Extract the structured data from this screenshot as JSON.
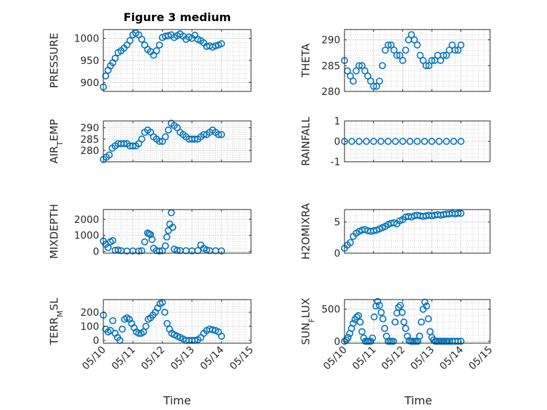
{
  "title": "Figure 3 medium",
  "colors": {
    "marker": "#0072BD",
    "axis": "#262626",
    "grid": "#dfdfdf",
    "minor_grid": "#b5b5b5"
  },
  "x_axis": {
    "label": "Time",
    "tick_labels": [
      "05/10",
      "05/11",
      "05/12",
      "05/13",
      "05/14",
      "05/15"
    ],
    "range_days": [
      0,
      5
    ]
  },
  "chart_data": [
    {
      "type": "scatter",
      "ylabel": "PRESSURE",
      "ylim": [
        880,
        1020
      ],
      "yticks": [
        900,
        950,
        1000
      ],
      "grid": true,
      "x": [
        0,
        0.08,
        0.16,
        0.24,
        0.32,
        0.4,
        0.5,
        0.6,
        0.7,
        0.8,
        0.9,
        1,
        1.1,
        1.2,
        1.3,
        1.4,
        1.5,
        1.6,
        1.7,
        1.8,
        1.9,
        2,
        2.1,
        2.2,
        2.3,
        2.4,
        2.5,
        2.6,
        2.7,
        2.8,
        2.9,
        3,
        3.1,
        3.2,
        3.3,
        3.4,
        3.5,
        3.6,
        3.7,
        3.8,
        3.9,
        4
      ],
      "y": [
        890,
        915,
        928,
        938,
        945,
        955,
        968,
        972,
        978,
        985,
        995,
        1008,
        1012,
        1008,
        998,
        985,
        975,
        970,
        962,
        972,
        985,
        1002,
        1005,
        1006,
        1008,
        1002,
        1006,
        1010,
        1005,
        998,
        1003,
        1000,
        1007,
        998,
        995,
        990,
        982,
        983,
        980,
        983,
        985,
        988
      ]
    },
    {
      "type": "scatter",
      "ylabel": "THETA",
      "ylim": [
        280,
        292
      ],
      "yticks": [
        280,
        285,
        290
      ],
      "grid": true,
      "x": [
        0,
        0.1,
        0.2,
        0.3,
        0.4,
        0.5,
        0.6,
        0.7,
        0.8,
        0.9,
        1,
        1.1,
        1.2,
        1.3,
        1.4,
        1.5,
        1.6,
        1.7,
        1.8,
        1.9,
        2,
        2.1,
        2.2,
        2.3,
        2.4,
        2.5,
        2.6,
        2.7,
        2.8,
        2.9,
        3,
        3.1,
        3.2,
        3.3,
        3.4,
        3.5,
        3.6,
        3.7,
        3.8,
        3.9,
        4
      ],
      "y": [
        286,
        284,
        283,
        282,
        284,
        285,
        285,
        284,
        283,
        282,
        281,
        281,
        282,
        285,
        288,
        289,
        289,
        288,
        287,
        287,
        286,
        288,
        290,
        291,
        290,
        289,
        287,
        286,
        285,
        285,
        286,
        286,
        287,
        286,
        287,
        287,
        288,
        289,
        288,
        288,
        289
      ]
    },
    {
      "type": "scatter",
      "ylabel": "AIR_T_EMP",
      "ylim": [
        275,
        293
      ],
      "yticks": [
        280,
        285,
        290
      ],
      "grid": true,
      "x": [
        0,
        0.1,
        0.2,
        0.3,
        0.4,
        0.5,
        0.6,
        0.7,
        0.8,
        0.9,
        1,
        1.1,
        1.2,
        1.3,
        1.4,
        1.5,
        1.6,
        1.7,
        1.8,
        1.9,
        2,
        2.1,
        2.2,
        2.3,
        2.4,
        2.5,
        2.6,
        2.7,
        2.8,
        2.9,
        3,
        3.1,
        3.2,
        3.3,
        3.4,
        3.5,
        3.6,
        3.7,
        3.8,
        3.9,
        4
      ],
      "y": [
        276,
        277,
        278,
        281,
        282,
        283,
        283,
        283,
        283,
        282,
        282,
        282,
        283,
        285,
        288,
        289,
        288,
        286,
        285,
        284,
        284,
        286,
        289,
        292,
        291,
        290,
        288,
        287,
        286,
        285,
        285,
        285,
        285,
        286,
        287,
        287,
        288,
        289,
        288,
        287,
        287
      ]
    },
    {
      "type": "scatter",
      "ylabel": "RAINFALL",
      "ylim": [
        -1,
        1
      ],
      "yticks": [
        -1,
        0,
        1
      ],
      "grid": true,
      "x": [
        0,
        0.25,
        0.5,
        0.75,
        1,
        1.25,
        1.5,
        1.75,
        2,
        2.25,
        2.5,
        2.75,
        3,
        3.25,
        3.5,
        3.75,
        4
      ],
      "y": [
        0,
        0,
        0,
        0,
        0,
        0,
        0,
        0,
        0,
        0,
        0,
        0,
        0,
        0,
        0,
        0,
        0
      ]
    },
    {
      "type": "scatter",
      "ylabel": "MIXDEPTH",
      "ylim": [
        -100,
        2600
      ],
      "yticks": [
        0,
        1000,
        2000
      ],
      "grid": true,
      "x": [
        0,
        0.08,
        0.16,
        0.24,
        0.32,
        0.4,
        0.5,
        0.6,
        0.8,
        1,
        1.2,
        1.3,
        1.4,
        1.5,
        1.55,
        1.6,
        1.65,
        1.7,
        1.8,
        1.9,
        2,
        2.1,
        2.15,
        2.2,
        2.25,
        2.3,
        2.35,
        2.4,
        2.5,
        2.6,
        2.8,
        3,
        3.2,
        3.3,
        3.4,
        3.5,
        3.6,
        3.8,
        4
      ],
      "y": [
        650,
        450,
        250,
        600,
        680,
        80,
        100,
        50,
        30,
        40,
        30,
        50,
        600,
        1150,
        1100,
        1050,
        750,
        200,
        60,
        30,
        50,
        350,
        900,
        1300,
        1700,
        2400,
        1500,
        150,
        80,
        60,
        50,
        40,
        60,
        400,
        200,
        100,
        60,
        50,
        40
      ]
    },
    {
      "type": "scatter",
      "ylabel": "H2OMIXRA",
      "ylim": [
        0,
        7
      ],
      "yticks": [
        0,
        5
      ],
      "grid": true,
      "x": [
        0,
        0.1,
        0.2,
        0.3,
        0.4,
        0.5,
        0.6,
        0.7,
        0.8,
        0.9,
        1,
        1.1,
        1.2,
        1.3,
        1.4,
        1.5,
        1.6,
        1.7,
        1.8,
        1.9,
        2,
        2.1,
        2.2,
        2.3,
        2.4,
        2.5,
        2.6,
        2.7,
        2.8,
        2.9,
        3,
        3.1,
        3.2,
        3.3,
        3.4,
        3.5,
        3.6,
        3.7,
        3.8,
        3.9,
        4
      ],
      "y": [
        0.8,
        1.3,
        1.7,
        2.7,
        3.2,
        3.5,
        3.7,
        3.8,
        3.6,
        3.5,
        3.6,
        3.7,
        3.9,
        4.1,
        4.3,
        4.6,
        4.8,
        4.9,
        4.7,
        5.2,
        5.4,
        5.8,
        5.9,
        5.8,
        6,
        6.1,
        6,
        5.9,
        6,
        6.1,
        6,
        6.1,
        6.2,
        6.1,
        6.2,
        6.3,
        6.3,
        6.4,
        6.3,
        6.4,
        6.4
      ]
    },
    {
      "type": "scatter",
      "ylabel": "TERR_M_SL",
      "ylim": [
        -20,
        290
      ],
      "yticks": [
        0,
        100,
        200
      ],
      "grid": true,
      "x": [
        0,
        0.08,
        0.16,
        0.24,
        0.32,
        0.4,
        0.48,
        0.56,
        0.64,
        0.72,
        0.8,
        0.88,
        0.96,
        1.04,
        1.12,
        1.2,
        1.28,
        1.36,
        1.44,
        1.52,
        1.6,
        1.68,
        1.76,
        1.84,
        1.92,
        2,
        2.08,
        2.16,
        2.24,
        2.32,
        2.4,
        2.5,
        2.6,
        2.7,
        2.8,
        2.9,
        3,
        3.1,
        3.2,
        3.3,
        3.4,
        3.5,
        3.6,
        3.7,
        3.8,
        3.9,
        4
      ],
      "y": [
        180,
        80,
        60,
        70,
        140,
        50,
        20,
        0,
        80,
        150,
        160,
        150,
        120,
        90,
        60,
        50,
        50,
        60,
        100,
        150,
        160,
        180,
        200,
        230,
        260,
        270,
        200,
        120,
        80,
        50,
        40,
        30,
        20,
        10,
        0,
        0,
        0,
        0,
        5,
        20,
        50,
        70,
        80,
        75,
        70,
        60,
        30
      ]
    },
    {
      "type": "scatter",
      "ylabel": "SUN_F_LUX",
      "ylim": [
        -30,
        650
      ],
      "yticks": [
        0,
        500
      ],
      "grid": true,
      "x": [
        0,
        0.06,
        0.12,
        0.18,
        0.24,
        0.3,
        0.36,
        0.42,
        0.48,
        0.54,
        0.6,
        0.66,
        0.72,
        0.78,
        0.84,
        0.9,
        0.96,
        1.02,
        1.08,
        1.14,
        1.2,
        1.26,
        1.32,
        1.38,
        1.44,
        1.5,
        1.56,
        1.62,
        1.68,
        1.74,
        1.8,
        1.86,
        1.92,
        1.98,
        2.04,
        2.1,
        2.16,
        2.22,
        2.28,
        2.34,
        2.4,
        2.46,
        2.52,
        2.58,
        2.64,
        2.7,
        2.76,
        2.82,
        2.88,
        2.94,
        3,
        3.06,
        3.12,
        3.18,
        3.24,
        3.3,
        3.36,
        3.42,
        3.48,
        3.54,
        3.6,
        3.7,
        3.8,
        3.9,
        4
      ],
      "y": [
        0,
        20,
        60,
        120,
        200,
        280,
        340,
        380,
        400,
        300,
        150,
        50,
        0,
        0,
        0,
        0,
        50,
        380,
        550,
        620,
        560,
        450,
        350,
        200,
        80,
        0,
        0,
        0,
        0,
        300,
        440,
        530,
        560,
        450,
        300,
        200,
        80,
        10,
        0,
        0,
        0,
        0,
        0,
        80,
        300,
        500,
        610,
        550,
        350,
        150,
        60,
        20,
        0,
        0,
        0,
        0,
        0,
        0,
        0,
        0,
        0,
        0,
        0,
        0,
        0
      ]
    }
  ]
}
